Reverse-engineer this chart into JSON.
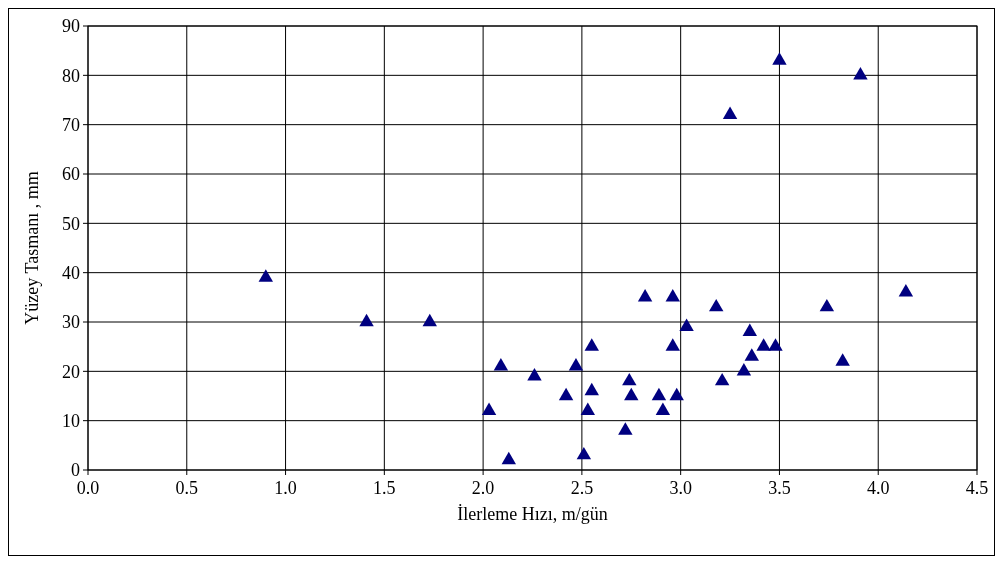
{
  "chart_data": {
    "type": "scatter",
    "xlabel": "İlerleme Hızı, m/gün",
    "ylabel": "Yüzey Tasmanı , mm",
    "x": [
      0.9,
      1.41,
      1.73,
      2.03,
      2.09,
      2.13,
      2.26,
      2.42,
      2.47,
      2.51,
      2.53,
      2.55,
      2.55,
      2.72,
      2.74,
      2.75,
      2.82,
      2.89,
      2.91,
      2.96,
      2.96,
      2.98,
      3.03,
      3.18,
      3.21,
      3.25,
      3.32,
      3.35,
      3.36,
      3.42,
      3.48,
      3.5,
      3.74,
      3.82,
      3.91,
      4.14
    ],
    "series": [
      {
        "color": "#000080",
        "values": [
          39,
          30,
          30,
          12,
          21,
          2,
          19,
          15,
          21,
          3,
          12,
          25,
          16,
          8,
          18,
          15,
          35,
          15,
          12,
          35,
          25,
          15,
          29,
          33,
          18,
          72,
          20,
          28,
          23,
          25,
          25,
          83,
          33,
          22,
          80,
          36
        ]
      }
    ],
    "xlim": [
      0,
      4.5
    ],
    "xticks": [
      {
        "value": 0,
        "label": "0.0"
      },
      {
        "value": 0.5,
        "label": "0.5"
      },
      {
        "value": 1,
        "label": "1.0"
      },
      {
        "value": 1.5,
        "label": "1.5"
      },
      {
        "value": 2,
        "label": "2.0"
      },
      {
        "value": 2.5,
        "label": "2.5"
      },
      {
        "value": 3,
        "label": "3.0"
      },
      {
        "value": 3.5,
        "label": "3.5"
      },
      {
        "value": 4,
        "label": "4.0"
      },
      {
        "value": 4.5,
        "label": "4.5"
      }
    ],
    "ylim": [
      0,
      90
    ],
    "yticks": [
      0,
      10,
      20,
      30,
      40,
      50,
      60,
      70,
      80,
      90
    ],
    "grid": true,
    "marker": "triangle"
  }
}
